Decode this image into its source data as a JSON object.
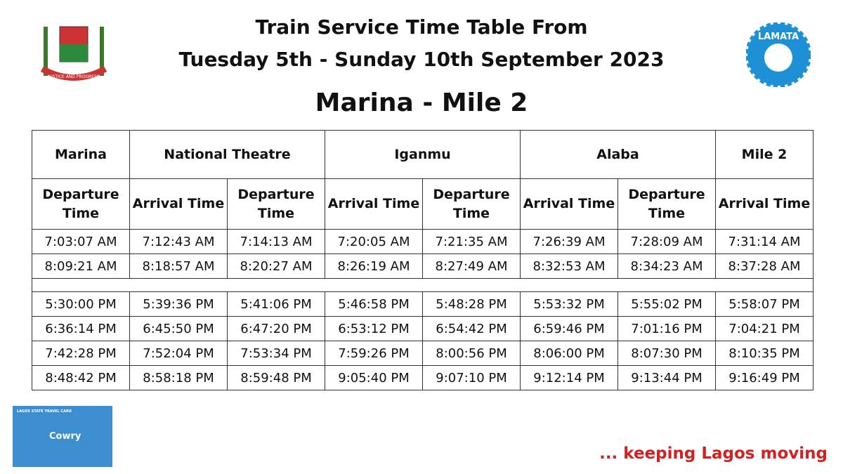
{
  "header": {
    "title_lines": [
      "Train Service Time Table From",
      "Tuesday 5th - Sunday 10th September 2023"
    ],
    "route": "Marina - Mile 2"
  },
  "logos": {
    "crest_motto": "JUSTICE AND PROGRESS",
    "agency": "LAMATA"
  },
  "table": {
    "stations": [
      {
        "name": "Marina",
        "columns": [
          "Departure Time"
        ]
      },
      {
        "name": "National Theatre",
        "columns": [
          "Arrival Time",
          "Departure Time"
        ]
      },
      {
        "name": "Iganmu",
        "columns": [
          "Arrival Time",
          "Departure Time"
        ]
      },
      {
        "name": "Alaba",
        "columns": [
          "Arrival Time",
          "Departure Time"
        ]
      },
      {
        "name": "Mile 2",
        "columns": [
          "Arrival Time"
        ]
      }
    ],
    "morning_rows": [
      [
        "7:03:07 AM",
        "7:12:43 AM",
        "7:14:13 AM",
        "7:20:05 AM",
        "7:21:35 AM",
        "7:26:39 AM",
        "7:28:09 AM",
        "7:31:14 AM"
      ],
      [
        "8:09:21 AM",
        "8:18:57 AM",
        "8:20:27 AM",
        "8:26:19 AM",
        "8:27:49 AM",
        "8:32:53 AM",
        "8:34:23 AM",
        "8:37:28 AM"
      ]
    ],
    "evening_rows": [
      [
        "5:30:00 PM",
        "5:39:36 PM",
        "5:41:06 PM",
        "5:46:58 PM",
        "5:48:28 PM",
        "5:53:32 PM",
        "5:55:02 PM",
        "5:58:07 PM"
      ],
      [
        "6:36:14 PM",
        "6:45:50 PM",
        "6:47:20 PM",
        "6:53:12 PM",
        "6:54:42 PM",
        "6:59:46 PM",
        "7:01:16 PM",
        "7:04:21 PM"
      ],
      [
        "7:42:28 PM",
        "7:52:04 PM",
        "7:53:34 PM",
        "7:59:26 PM",
        "8:00:56 PM",
        "8:06:00 PM",
        "8:07:30 PM",
        "8:10:35 PM"
      ],
      [
        "8:48:42 PM",
        "8:58:18 PM",
        "8:59:48 PM",
        "9:05:40 PM",
        "9:07:10 PM",
        "9:12:14 PM",
        "9:13:44 PM",
        "9:16:49 PM"
      ]
    ]
  },
  "card": {
    "caption": "LAGOS STATE TRAVEL CARD",
    "name": "Cowry"
  },
  "footer": {
    "slogan": "... keeping Lagos moving"
  }
}
